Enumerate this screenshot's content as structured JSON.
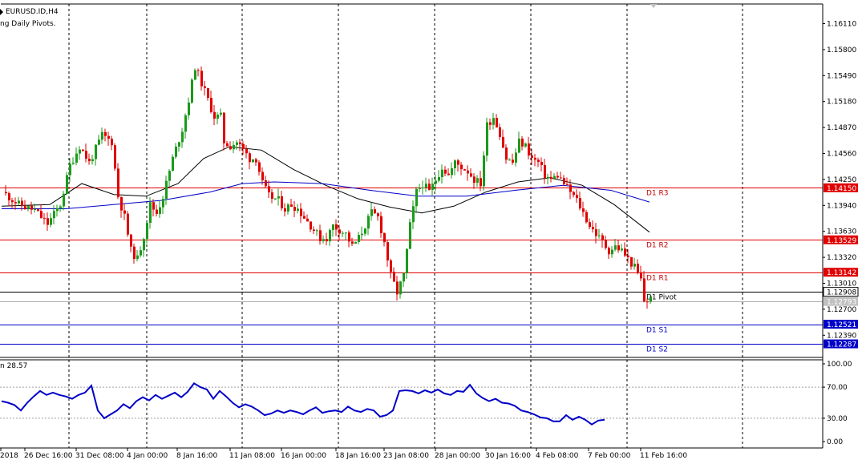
{
  "chart_data": [
    {
      "type": "candlestick",
      "symbol": "EURUSD.ID,H4",
      "indicator_name": "ng Daily Pivots.",
      "y_axis": {
        "min": 1.1213,
        "max": 1.1642,
        "tick_labels": [
          "1.16110",
          "1.15800",
          "1.15490",
          "1.15180",
          "1.14870",
          "1.14560",
          "1.14250",
          "1.13940",
          "1.13630",
          "1.13320",
          "1.13010",
          "1.12700",
          "1.12390"
        ]
      },
      "x_axis": {
        "tick_labels": [
          "2018",
          "26 Dec 16:00",
          "31 Dec 08:00",
          "4 Jan 00:00",
          "8 Jan 16:00",
          "11 Jan 08:00",
          "16 Jan 00:00",
          "18 Jan 16:00",
          "23 Jan 08:00",
          "28 Jan 00:00",
          "30 Jan 16:00",
          "4 Feb 08:00",
          "7 Feb 00:00",
          "11 Feb 16:00"
        ]
      },
      "pivot_levels": [
        {
          "label": "D1 R3",
          "value": 1.1415,
          "color": "#e00000",
          "tag": "1.14150"
        },
        {
          "label": "D1 R2",
          "value": 1.13529,
          "color": "#e00000",
          "tag": "1.13529"
        },
        {
          "label": "D1 R1",
          "value": 1.13142,
          "color": "#e00000",
          "tag": "1.13142"
        },
        {
          "label": "D1 Pivot",
          "value": 1.12908,
          "color": "#000000",
          "tag": "1.12908"
        },
        {
          "label": "D1 S1",
          "value": 1.12521,
          "color": "#0000c8",
          "tag": "1.12521"
        },
        {
          "label": "D1 S2",
          "value": 1.12287,
          "color": "#0000c8",
          "tag": "1.12287"
        }
      ],
      "current_price": {
        "value": 1.12793,
        "tag": "1.12793"
      },
      "price_waypoints": [
        [
          0,
          1.141
        ],
        [
          5,
          1.1395
        ],
        [
          10,
          1.1388
        ],
        [
          14,
          1.1372
        ],
        [
          18,
          1.1395
        ],
        [
          21,
          1.1442
        ],
        [
          24,
          1.1465
        ],
        [
          27,
          1.1445
        ],
        [
          31,
          1.1478
        ],
        [
          34,
          1.147
        ],
        [
          36,
          1.1405
        ],
        [
          38,
          1.138
        ],
        [
          40,
          1.134
        ],
        [
          42,
          1.133
        ],
        [
          44,
          1.1358
        ],
        [
          46,
          1.1395
        ],
        [
          48,
          1.1385
        ],
        [
          50,
          1.1405
        ],
        [
          53,
          1.145
        ],
        [
          56,
          1.1485
        ],
        [
          58,
          1.152
        ],
        [
          60,
          1.156
        ],
        [
          62,
          1.154
        ],
        [
          64,
          1.152
        ],
        [
          66,
          1.15
        ],
        [
          68,
          1.15
        ],
        [
          69,
          1.147
        ],
        [
          71,
          1.1465
        ],
        [
          73,
          1.147
        ],
        [
          75,
          1.146
        ],
        [
          77,
          1.145
        ],
        [
          79,
          1.145
        ],
        [
          81,
          1.142
        ],
        [
          83,
          1.1405
        ],
        [
          86,
          1.14
        ],
        [
          88,
          1.139
        ],
        [
          90,
          1.1395
        ],
        [
          92,
          1.139
        ],
        [
          95,
          1.1375
        ],
        [
          97,
          1.1365
        ],
        [
          99,
          1.1355
        ],
        [
          101,
          1.1355
        ],
        [
          103,
          1.137
        ],
        [
          105,
          1.1365
        ],
        [
          107,
          1.136
        ],
        [
          109,
          1.1345
        ],
        [
          111,
          1.1355
        ],
        [
          113,
          1.137
        ],
        [
          115,
          1.1385
        ],
        [
          117,
          1.138
        ],
        [
          119,
          1.135
        ],
        [
          121,
          1.131
        ],
        [
          123,
          1.129
        ],
        [
          125,
          1.131
        ],
        [
          127,
          1.137
        ],
        [
          129,
          1.141
        ],
        [
          131,
          1.142
        ],
        [
          133,
          1.141
        ],
        [
          135,
          1.1425
        ],
        [
          137,
          1.144
        ],
        [
          139,
          1.143
        ],
        [
          141,
          1.1445
        ],
        [
          143,
          1.144
        ],
        [
          145,
          1.1435
        ],
        [
          147,
          1.1425
        ],
        [
          149,
          1.142
        ],
        [
          151,
          1.149
        ],
        [
          153,
          1.15
        ],
        [
          155,
          1.148
        ],
        [
          157,
          1.145
        ],
        [
          159,
          1.1445
        ],
        [
          161,
          1.147
        ],
        [
          163,
          1.1465
        ],
        [
          165,
          1.145
        ],
        [
          167,
          1.1445
        ],
        [
          169,
          1.143
        ],
        [
          171,
          1.1425
        ],
        [
          173,
          1.143
        ],
        [
          175,
          1.142
        ],
        [
          177,
          1.141
        ],
        [
          179,
          1.14
        ],
        [
          181,
          1.1385
        ],
        [
          183,
          1.137
        ],
        [
          185,
          1.136
        ],
        [
          187,
          1.135
        ],
        [
          189,
          1.134
        ],
        [
          191,
          1.1345
        ],
        [
          193,
          1.134
        ],
        [
          195,
          1.133
        ],
        [
          197,
          1.132
        ],
        [
          199,
          1.1305
        ],
        [
          200,
          1.128
        ],
        [
          202,
          1.1282
        ]
      ],
      "moving_averages": [
        {
          "color": "#000000",
          "points": [
            [
              0,
              1.1393
            ],
            [
              15,
              1.1395
            ],
            [
              25,
              1.142
            ],
            [
              35,
              1.1407
            ],
            [
              45,
              1.1405
            ],
            [
              55,
              1.142
            ],
            [
              63,
              1.145
            ],
            [
              71,
              1.1464
            ],
            [
              81,
              1.146
            ],
            [
              91,
              1.1437
            ],
            [
              101,
              1.1418
            ],
            [
              111,
              1.1402
            ],
            [
              121,
              1.1392
            ],
            [
              131,
              1.1385
            ],
            [
              141,
              1.1393
            ],
            [
              151,
              1.141
            ],
            [
              161,
              1.1422
            ],
            [
              171,
              1.1427
            ],
            [
              181,
              1.1418
            ],
            [
              191,
              1.1395
            ],
            [
              202,
              1.1362
            ]
          ]
        },
        {
          "color": "#0000c8",
          "points": [
            [
              0,
              1.139
            ],
            [
              20,
              1.139
            ],
            [
              35,
              1.1395
            ],
            [
              50,
              1.14
            ],
            [
              65,
              1.141
            ],
            [
              75,
              1.142
            ],
            [
              85,
              1.1422
            ],
            [
              100,
              1.142
            ],
            [
              115,
              1.1412
            ],
            [
              130,
              1.1405
            ],
            [
              145,
              1.1405
            ],
            [
              160,
              1.1412
            ],
            [
              175,
              1.1418
            ],
            [
              190,
              1.1412
            ],
            [
              202,
              1.1398
            ]
          ]
        }
      ]
    },
    {
      "type": "line",
      "indicator_value_label": "n 28.57",
      "y_axis": {
        "min": 0,
        "max": 100,
        "tick_labels": [
          "100.00",
          "70.00",
          "30.00",
          "0.00"
        ],
        "reference_levels": [
          70,
          30
        ]
      },
      "series": [
        {
          "color": "#0000c8",
          "values": [
            [
              0,
              52
            ],
            [
              2,
              50
            ],
            [
              4,
              47
            ],
            [
              6,
              40
            ],
            [
              8,
              50
            ],
            [
              10,
              58
            ],
            [
              12,
              65
            ],
            [
              14,
              60
            ],
            [
              16,
              63
            ],
            [
              18,
              60
            ],
            [
              20,
              58
            ],
            [
              22,
              55
            ],
            [
              24,
              60
            ],
            [
              26,
              63
            ],
            [
              28,
              72
            ],
            [
              30,
              40
            ],
            [
              32,
              30
            ],
            [
              34,
              35
            ],
            [
              36,
              40
            ],
            [
              38,
              48
            ],
            [
              40,
              43
            ],
            [
              42,
              52
            ],
            [
              44,
              57
            ],
            [
              46,
              53
            ],
            [
              48,
              60
            ],
            [
              50,
              55
            ],
            [
              52,
              59
            ],
            [
              54,
              63
            ],
            [
              56,
              57
            ],
            [
              58,
              64
            ],
            [
              60,
              75
            ],
            [
              62,
              70
            ],
            [
              64,
              67
            ],
            [
              66,
              55
            ],
            [
              68,
              65
            ],
            [
              70,
              58
            ],
            [
              72,
              50
            ],
            [
              74,
              44
            ],
            [
              76,
              48
            ],
            [
              78,
              45
            ],
            [
              80,
              40
            ],
            [
              82,
              34
            ],
            [
              84,
              36
            ],
            [
              86,
              40
            ],
            [
              88,
              37
            ],
            [
              90,
              40
            ],
            [
              92,
              38
            ],
            [
              94,
              35
            ],
            [
              96,
              40
            ],
            [
              98,
              44
            ],
            [
              100,
              37
            ],
            [
              102,
              39
            ],
            [
              104,
              40
            ],
            [
              106,
              38
            ],
            [
              108,
              45
            ],
            [
              110,
              40
            ],
            [
              112,
              38
            ],
            [
              114,
              42
            ],
            [
              116,
              40
            ],
            [
              118,
              32
            ],
            [
              120,
              34
            ],
            [
              122,
              40
            ],
            [
              124,
              65
            ],
            [
              126,
              66
            ],
            [
              128,
              65
            ],
            [
              130,
              62
            ],
            [
              132,
              66
            ],
            [
              134,
              63
            ],
            [
              136,
              67
            ],
            [
              138,
              62
            ],
            [
              140,
              60
            ],
            [
              142,
              65
            ],
            [
              144,
              64
            ],
            [
              146,
              73
            ],
            [
              148,
              62
            ],
            [
              150,
              56
            ],
            [
              152,
              52
            ],
            [
              154,
              55
            ],
            [
              156,
              50
            ],
            [
              158,
              49
            ],
            [
              160,
              46
            ],
            [
              162,
              40
            ],
            [
              164,
              38
            ],
            [
              166,
              35
            ],
            [
              168,
              31
            ],
            [
              170,
              30
            ],
            [
              172,
              26
            ],
            [
              174,
              26
            ],
            [
              176,
              34
            ],
            [
              178,
              28
            ],
            [
              180,
              32
            ],
            [
              182,
              28
            ],
            [
              184,
              22
            ],
            [
              186,
              27
            ],
            [
              188,
              28
            ]
          ]
        }
      ],
      "current_value": 28.57
    }
  ]
}
